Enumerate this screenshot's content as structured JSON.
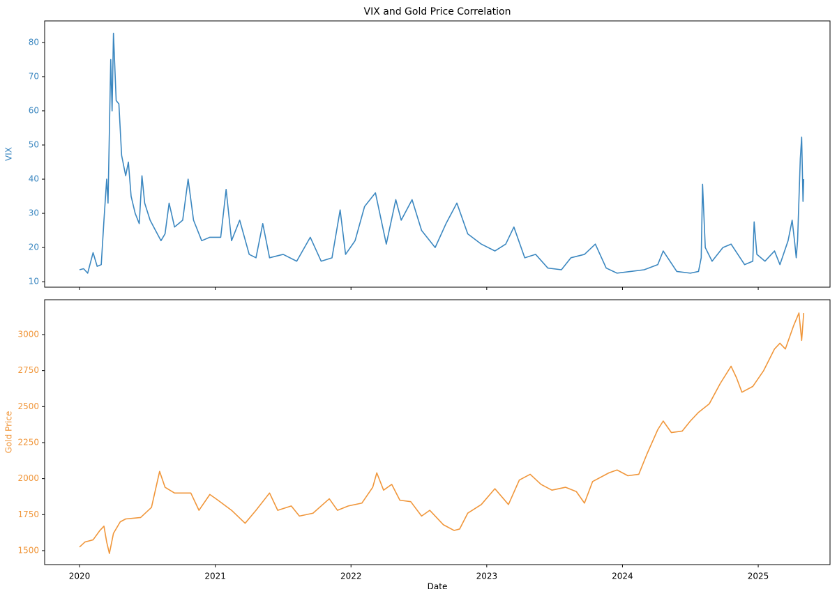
{
  "chart_data": [
    {
      "type": "line",
      "title": "VIX and Gold Price Correlation",
      "ylabel": "VIX",
      "color": "#3b87c0",
      "x": [
        2020.0,
        2020.03,
        2020.06,
        2020.1,
        2020.13,
        2020.16,
        2020.18,
        2020.2,
        2020.21,
        2020.22,
        2020.23,
        2020.24,
        2020.25,
        2020.27,
        2020.29,
        2020.31,
        2020.34,
        2020.36,
        2020.38,
        2020.41,
        2020.44,
        2020.46,
        2020.48,
        2020.52,
        2020.56,
        2020.6,
        2020.63,
        2020.66,
        2020.7,
        2020.76,
        2020.8,
        2020.84,
        2020.9,
        2020.96,
        2021.04,
        2021.08,
        2021.12,
        2021.18,
        2021.25,
        2021.3,
        2021.35,
        2021.4,
        2021.5,
        2021.6,
        2021.7,
        2021.78,
        2021.86,
        2021.92,
        2021.96,
        2022.03,
        2022.1,
        2022.18,
        2022.26,
        2022.33,
        2022.37,
        2022.45,
        2022.52,
        2022.62,
        2022.7,
        2022.78,
        2022.86,
        2022.96,
        2023.06,
        2023.14,
        2023.2,
        2023.28,
        2023.36,
        2023.45,
        2023.55,
        2023.62,
        2023.72,
        2023.8,
        2023.88,
        2023.96,
        2024.06,
        2024.16,
        2024.26,
        2024.3,
        2024.4,
        2024.5,
        2024.56,
        2024.58,
        2024.59,
        2024.61,
        2024.66,
        2024.74,
        2024.8,
        2024.9,
        2024.96,
        2024.97,
        2024.99,
        2025.05,
        2025.12,
        2025.16,
        2025.22,
        2025.25,
        2025.27,
        2025.28,
        2025.29,
        2025.31,
        2025.32,
        2025.33,
        2025.335
      ],
      "values": [
        13.5,
        13.8,
        12.5,
        18.5,
        14.5,
        15,
        28,
        40,
        33,
        54,
        75,
        60,
        82.7,
        63,
        62,
        47,
        41,
        45,
        35,
        30,
        27,
        41,
        33,
        28,
        25,
        22,
        24,
        33,
        26,
        28,
        40,
        28,
        22,
        23,
        23,
        37,
        22,
        28,
        18,
        17,
        27,
        17,
        18,
        16,
        23,
        16,
        17,
        31,
        18,
        22,
        32,
        36,
        21,
        34,
        28,
        34,
        25,
        20,
        27,
        33,
        24,
        21,
        19,
        21,
        26,
        17,
        18,
        14,
        13.5,
        17,
        18,
        21,
        14,
        12.5,
        13,
        13.5,
        15,
        19,
        13,
        12.5,
        13,
        17,
        38.5,
        20,
        16,
        20,
        21,
        15,
        16,
        27.5,
        18,
        16,
        19,
        15,
        22,
        28,
        21,
        17,
        22,
        46,
        52.3,
        33.5,
        40
      ],
      "xlim": [
        2019.743,
        2025.529
      ],
      "xticks": [
        2020,
        2021,
        2022,
        2023,
        2024,
        2025
      ],
      "ylim": [
        8.4,
        86.3
      ],
      "yticks": [
        10,
        20,
        30,
        40,
        50,
        60,
        70,
        80
      ],
      "grid": false
    },
    {
      "type": "line",
      "ylabel": "Gold Price",
      "xlabel": "Date",
      "color": "#f0963a",
      "x": [
        2020.0,
        2020.04,
        2020.1,
        2020.15,
        2020.18,
        2020.2,
        2020.22,
        2020.25,
        2020.3,
        2020.34,
        2020.45,
        2020.53,
        2020.59,
        2020.63,
        2020.7,
        2020.82,
        2020.88,
        2020.96,
        2021.02,
        2021.12,
        2021.22,
        2021.3,
        2021.4,
        2021.46,
        2021.56,
        2021.62,
        2021.72,
        2021.84,
        2021.9,
        2021.98,
        2022.08,
        2022.16,
        2022.19,
        2022.24,
        2022.3,
        2022.36,
        2022.44,
        2022.52,
        2022.58,
        2022.68,
        2022.76,
        2022.8,
        2022.86,
        2022.96,
        2023.06,
        2023.16,
        2023.24,
        2023.32,
        2023.4,
        2023.48,
        2023.58,
        2023.66,
        2023.72,
        2023.78,
        2023.9,
        2023.96,
        2024.04,
        2024.12,
        2024.18,
        2024.26,
        2024.3,
        2024.36,
        2024.44,
        2024.5,
        2024.56,
        2024.64,
        2024.72,
        2024.8,
        2024.84,
        2024.88,
        2024.96,
        2025.04,
        2025.12,
        2025.16,
        2025.2,
        2025.26,
        2025.3,
        2025.32,
        2025.335
      ],
      "values": [
        1525,
        1560,
        1575,
        1640,
        1670,
        1560,
        1480,
        1620,
        1700,
        1720,
        1730,
        1800,
        2050,
        1940,
        1900,
        1900,
        1780,
        1890,
        1850,
        1780,
        1690,
        1780,
        1900,
        1780,
        1810,
        1740,
        1760,
        1860,
        1780,
        1810,
        1830,
        1940,
        2040,
        1920,
        1960,
        1850,
        1840,
        1740,
        1780,
        1680,
        1640,
        1650,
        1760,
        1820,
        1930,
        1820,
        1990,
        2030,
        1960,
        1920,
        1940,
        1910,
        1830,
        1980,
        2040,
        2060,
        2020,
        2030,
        2170,
        2340,
        2400,
        2320,
        2330,
        2400,
        2460,
        2520,
        2660,
        2780,
        2700,
        2600,
        2640,
        2750,
        2900,
        2940,
        2900,
        3060,
        3150,
        2960,
        3150
      ],
      "xlim": [
        2019.743,
        2025.529
      ],
      "xticks": [
        2020,
        2021,
        2022,
        2023,
        2024,
        2025
      ],
      "ylim": [
        1403,
        3242
      ],
      "yticks": [
        1500,
        1750,
        2000,
        2250,
        2500,
        2750,
        3000
      ],
      "grid": false
    }
  ]
}
